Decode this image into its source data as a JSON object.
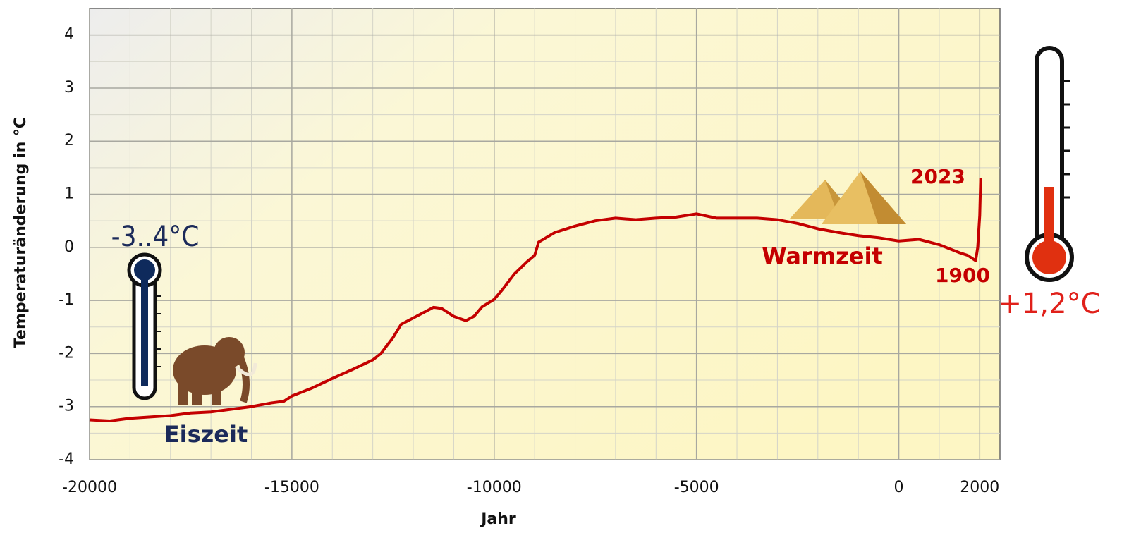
{
  "chart_data": {
    "type": "line",
    "x_label": "Jahr",
    "y_label": "Temperaturänderung in °C",
    "x": [
      -20000,
      -19500,
      -19000,
      -18000,
      -17500,
      -17000,
      -16500,
      -16000,
      -15500,
      -15200,
      -15000,
      -14500,
      -14000,
      -13500,
      -13000,
      -12800,
      -12500,
      -12300,
      -12000,
      -11800,
      -11500,
      -11300,
      -11000,
      -10700,
      -10500,
      -10300,
      -10000,
      -9800,
      -9500,
      -9200,
      -9000,
      -8900,
      -8500,
      -8000,
      -7500,
      -7000,
      -6500,
      -6000,
      -5500,
      -5000,
      -4500,
      -4000,
      -3500,
      -3000,
      -2500,
      -2000,
      -1500,
      -1000,
      -500,
      0,
      500,
      1000,
      1500,
      1700,
      1800,
      1900,
      1950,
      2000,
      2023
    ],
    "series": [
      {
        "name": "Temperaturänderung",
        "color": "#c40000",
        "values": [
          -3.25,
          -3.27,
          -3.22,
          -3.17,
          -3.12,
          -3.1,
          -3.05,
          -3.0,
          -2.93,
          -2.9,
          -2.8,
          -2.65,
          -2.47,
          -2.3,
          -2.12,
          -2.0,
          -1.7,
          -1.45,
          -1.33,
          -1.25,
          -1.13,
          -1.15,
          -1.3,
          -1.38,
          -1.3,
          -1.12,
          -0.98,
          -0.8,
          -0.5,
          -0.28,
          -0.15,
          0.1,
          0.28,
          0.4,
          0.5,
          0.55,
          0.52,
          0.55,
          0.57,
          0.63,
          0.55,
          0.55,
          0.55,
          0.52,
          0.45,
          0.35,
          0.28,
          0.22,
          0.18,
          0.12,
          0.15,
          0.05,
          -0.1,
          -0.15,
          -0.2,
          -0.25,
          0.0,
          0.6,
          1.3
        ]
      }
    ],
    "xlim": [
      -20000,
      2500
    ],
    "ylim": [
      -4,
      4.5
    ],
    "xticks": [
      -20000,
      -15000,
      -10000,
      -5000,
      0,
      2000
    ],
    "yticks": [
      -4,
      -3,
      -2,
      -1,
      0,
      1,
      2,
      3,
      4
    ],
    "grid": true,
    "annotations": [
      "-3..4°C",
      "Eiszeit",
      "Warmzeit",
      "2023",
      "1900",
      "+1,2°C"
    ]
  }
}
